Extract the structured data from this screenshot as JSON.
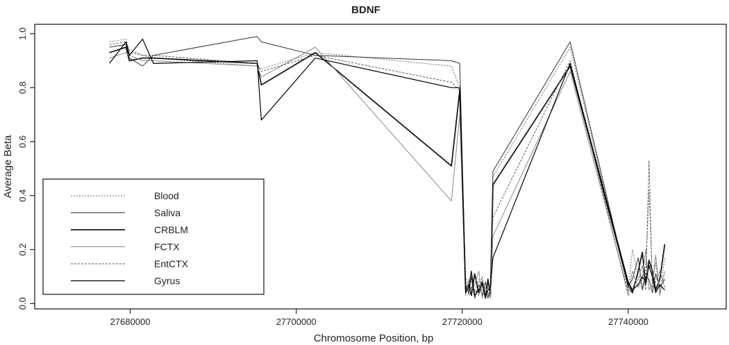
{
  "chart_data": {
    "type": "line",
    "title": "BDNF",
    "xlabel": "Chromosome Position, bp",
    "ylabel": "Average Beta",
    "xlim": [
      27668500,
      27751800
    ],
    "ylim": [
      -0.02,
      1.035
    ],
    "x_ticks": [
      27680000,
      27700000,
      27720000,
      27740000
    ],
    "x_tick_labels": [
      "27680000",
      "27700000",
      "27720000",
      "27740000"
    ],
    "y_ticks": [
      0.0,
      0.2,
      0.4,
      0.6,
      0.8,
      1.0
    ],
    "y_tick_labels": [
      "0.0",
      "0.2",
      "0.4",
      "0.6",
      "0.8",
      "1.0"
    ],
    "grid": false,
    "legend_position": "bottom-left",
    "x": [
      27677500,
      27679500,
      27679900,
      27681500,
      27682800,
      27695300,
      27695800,
      27702300,
      27718700,
      27719700,
      27720400,
      27720800,
      27721100,
      27721500,
      27722000,
      27722400,
      27722800,
      27723100,
      27723400,
      27723700,
      27733000,
      27740000,
      27740500,
      27741200,
      27741700,
      27742100,
      27742500,
      27742900,
      27743300,
      27743800,
      27744400
    ],
    "series": [
      {
        "name": "Blood",
        "color": "#666666",
        "dash": "2,2",
        "width": 1.0,
        "values": [
          0.97,
          0.98,
          0.93,
          0.92,
          0.91,
          0.88,
          0.87,
          0.93,
          0.88,
          0.8,
          0.1,
          0.05,
          0.08,
          0.04,
          0.09,
          0.05,
          0.06,
          0.03,
          0.04,
          0.47,
          0.95,
          0.05,
          0.2,
          0.1,
          0.06,
          0.12,
          0.42,
          0.08,
          0.15,
          0.04,
          0.17
        ]
      },
      {
        "name": "Saliva",
        "color": "#333333",
        "dash": "",
        "width": 1.0,
        "values": [
          0.95,
          0.96,
          0.91,
          0.88,
          0.92,
          0.99,
          0.97,
          0.92,
          0.9,
          0.89,
          0.07,
          0.04,
          0.1,
          0.02,
          0.07,
          0.03,
          0.08,
          0.02,
          0.05,
          0.49,
          0.97,
          0.06,
          0.09,
          0.17,
          0.05,
          0.1,
          0.09,
          0.04,
          0.11,
          0.06,
          0.09
        ]
      },
      {
        "name": "CRBLM",
        "color": "#1a1a1a",
        "dash": "",
        "width": 1.8,
        "values": [
          0.93,
          0.95,
          0.9,
          0.91,
          0.91,
          0.89,
          0.81,
          0.93,
          0.51,
          0.79,
          0.05,
          0.07,
          0.03,
          0.11,
          0.04,
          0.08,
          0.02,
          0.09,
          0.03,
          0.44,
          0.88,
          0.07,
          0.04,
          0.12,
          0.19,
          0.07,
          0.16,
          0.12,
          0.05,
          0.09,
          0.22
        ]
      },
      {
        "name": "FCTX",
        "color": "#888888",
        "dash": "",
        "width": 1.0,
        "values": [
          0.91,
          0.93,
          0.92,
          0.9,
          0.9,
          0.88,
          0.84,
          0.95,
          0.38,
          0.7,
          0.03,
          0.09,
          0.05,
          0.07,
          0.12,
          0.02,
          0.06,
          0.04,
          0.02,
          0.25,
          0.86,
          0.04,
          0.12,
          0.06,
          0.09,
          0.2,
          0.05,
          0.07,
          0.18,
          0.03,
          0.12
        ]
      },
      {
        "name": "EntCTX",
        "color": "#555555",
        "dash": "3,2",
        "width": 1.0,
        "values": [
          0.96,
          0.97,
          0.94,
          0.92,
          0.92,
          0.89,
          0.86,
          0.92,
          0.82,
          0.79,
          0.08,
          0.03,
          0.06,
          0.05,
          0.03,
          0.1,
          0.04,
          0.06,
          0.07,
          0.32,
          0.9,
          0.03,
          0.06,
          0.09,
          0.14,
          0.05,
          0.53,
          0.06,
          0.08,
          0.12,
          0.06
        ]
      },
      {
        "name": "Gyrus",
        "color": "#000000",
        "dash": "",
        "width": 1.2,
        "values": [
          0.89,
          0.97,
          0.92,
          0.98,
          0.89,
          0.9,
          0.68,
          0.91,
          0.8,
          0.8,
          0.04,
          0.06,
          0.12,
          0.03,
          0.05,
          0.07,
          0.03,
          0.05,
          0.06,
          0.17,
          0.89,
          0.08,
          0.05,
          0.07,
          0.1,
          0.08,
          0.14,
          0.1,
          0.04,
          0.07,
          0.05
        ]
      }
    ]
  }
}
